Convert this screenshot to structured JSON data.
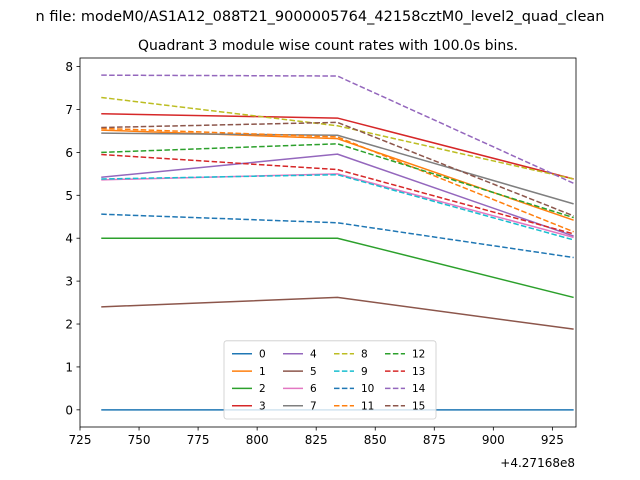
{
  "figure": {
    "suptitle": "n file: modeM0/AS1A12_088T21_9000005764_42158cztM0_level2_quad_clean",
    "offset_text": "+4.27168e8"
  },
  "chart_data": {
    "type": "line",
    "title": "Quadrant 3 module wise count rates with 100.0s bins.",
    "xlabel": "",
    "ylabel": "",
    "x": [
      734,
      834,
      934
    ],
    "x_offset": 427168000,
    "xlim": [
      725,
      935
    ],
    "ylim": [
      -0.4,
      8.2
    ],
    "x_ticks": [
      725,
      750,
      775,
      800,
      825,
      850,
      875,
      900,
      925
    ],
    "y_ticks": [
      0,
      1,
      2,
      3,
      4,
      5,
      6,
      7,
      8
    ],
    "grid": false,
    "legend": {
      "placement": "lower center",
      "columns": 4
    },
    "series": [
      {
        "name": "0",
        "color": "#1f77b4",
        "style": "solid",
        "values": [
          0.0,
          0.0,
          0.0
        ]
      },
      {
        "name": "1",
        "color": "#ff7f0e",
        "style": "solid",
        "values": [
          6.52,
          6.32,
          4.42
        ]
      },
      {
        "name": "2",
        "color": "#2ca02c",
        "style": "solid",
        "values": [
          4.0,
          4.0,
          2.62
        ]
      },
      {
        "name": "3",
        "color": "#d62728",
        "style": "solid",
        "values": [
          6.9,
          6.8,
          5.38
        ]
      },
      {
        "name": "4",
        "color": "#9467bd",
        "style": "solid",
        "values": [
          5.42,
          5.96,
          4.05
        ]
      },
      {
        "name": "5",
        "color": "#8c564b",
        "style": "solid",
        "values": [
          2.4,
          2.62,
          1.88
        ]
      },
      {
        "name": "6",
        "color": "#e377c2",
        "style": "solid",
        "values": [
          5.36,
          5.5,
          4.02
        ]
      },
      {
        "name": "7",
        "color": "#7f7f7f",
        "style": "solid",
        "values": [
          6.45,
          6.4,
          4.8
        ]
      },
      {
        "name": "8",
        "color": "#bcbd22",
        "style": "dashed",
        "values": [
          7.28,
          6.62,
          5.38
        ]
      },
      {
        "name": "9",
        "color": "#17becf",
        "style": "dashed",
        "values": [
          5.38,
          5.48,
          3.96
        ]
      },
      {
        "name": "10",
        "color": "#1f77b4",
        "style": "dashed",
        "values": [
          4.56,
          4.36,
          3.55
        ]
      },
      {
        "name": "11",
        "color": "#ff7f0e",
        "style": "dashed",
        "values": [
          6.56,
          6.36,
          4.15
        ]
      },
      {
        "name": "12",
        "color": "#2ca02c",
        "style": "dashed",
        "values": [
          6.0,
          6.2,
          4.48
        ]
      },
      {
        "name": "13",
        "color": "#d62728",
        "style": "dashed",
        "values": [
          5.95,
          5.6,
          4.1
        ]
      },
      {
        "name": "14",
        "color": "#9467bd",
        "style": "dashed",
        "values": [
          7.8,
          7.78,
          5.28
        ]
      },
      {
        "name": "15",
        "color": "#8c564b",
        "style": "dashed",
        "values": [
          6.58,
          6.7,
          4.52
        ]
      }
    ]
  }
}
